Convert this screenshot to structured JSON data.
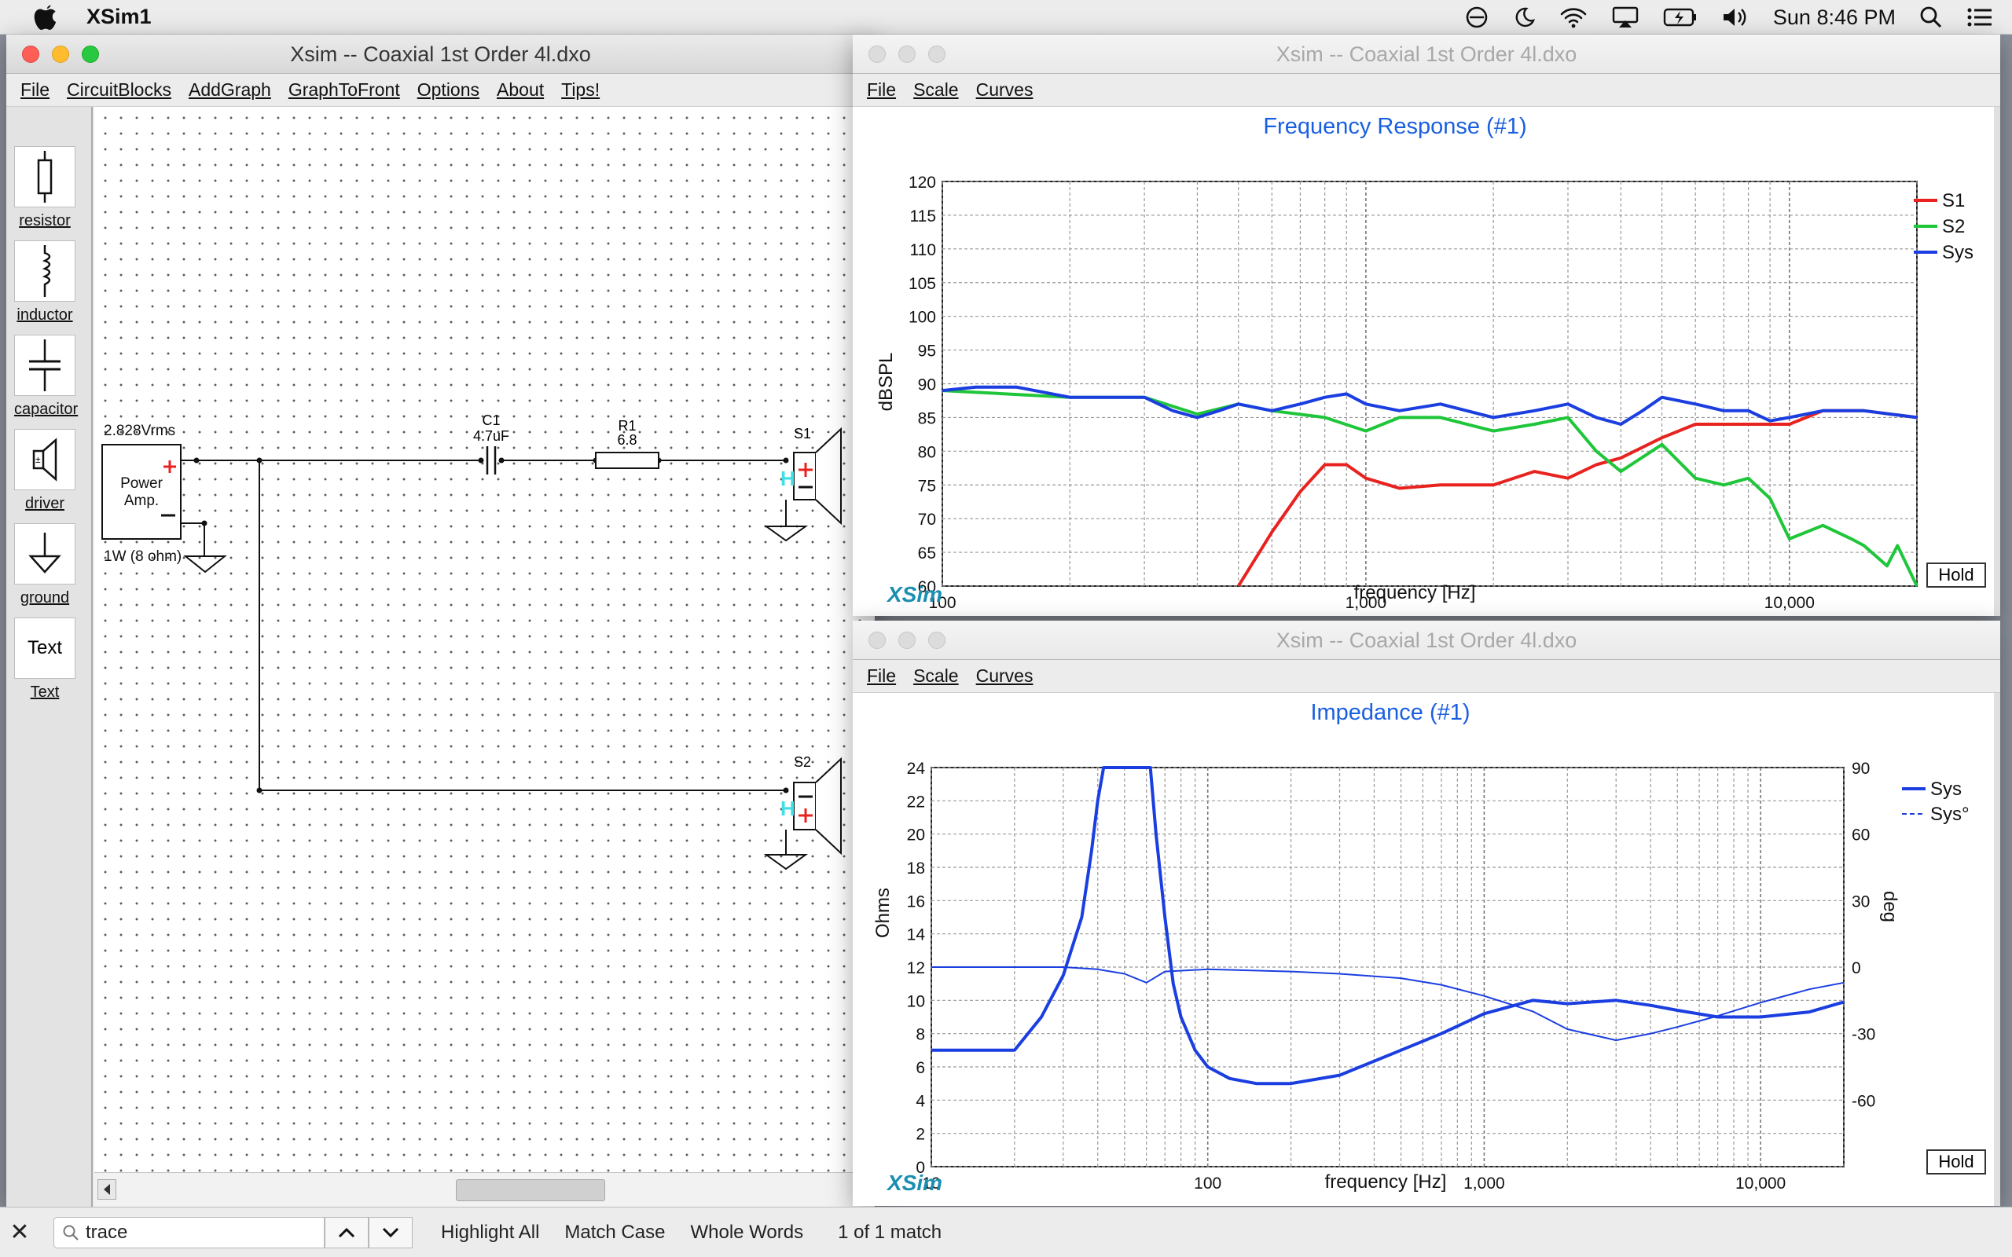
{
  "menubar": {
    "app_name": "XSim1",
    "clock": "Sun 8:46 PM"
  },
  "main_window": {
    "title": "Xsim -- Coaxial 1st Order 4l.dxo",
    "menu": [
      "File",
      "CircuitBlocks",
      "AddGraph",
      "GraphToFront",
      "Options",
      "About",
      "Tips!"
    ],
    "palette": [
      {
        "label": "resistor",
        "icon": "resistor-icon"
      },
      {
        "label": "inductor",
        "icon": "inductor-icon"
      },
      {
        "label": "capacitor",
        "icon": "capacitor-icon"
      },
      {
        "label": "driver",
        "icon": "driver-icon"
      },
      {
        "label": "ground",
        "icon": "ground-icon"
      },
      {
        "label": "Text",
        "icon": "text-icon"
      }
    ],
    "circuit": {
      "amp_voltage": "2.828Vrms",
      "amp_label_1": "Power",
      "amp_label_2": "Amp.",
      "amp_power": "1W (8 ohm)",
      "c1_name": "C1",
      "c1_value": "4.7uF",
      "r1_name": "R1",
      "r1_value": "6.8",
      "s1_name": "S1",
      "s2_name": "S2",
      "driver_tag": "H"
    }
  },
  "freq_window": {
    "title": "Xsim -- Coaxial 1st Order 4l.dxo",
    "menu": [
      "File",
      "Scale",
      "Curves"
    ],
    "hold_label": "Hold",
    "brand": "XSim",
    "chart_data": {
      "type": "line",
      "title": "Frequency Response (#1)",
      "xlabel": "frequency [Hz]",
      "ylabel": "dBSPL",
      "x_scale": "log",
      "xlim": [
        100,
        20000
      ],
      "ylim": [
        60,
        120
      ],
      "x_ticks": [
        "100",
        "1,000",
        "10,000"
      ],
      "y_ticks": [
        "60",
        "65",
        "70",
        "75",
        "80",
        "85",
        "90",
        "95",
        "100",
        "105",
        "110",
        "115",
        "120"
      ],
      "grid": true,
      "legend_position": "top-right",
      "series": [
        {
          "name": "S1",
          "color": "#e8231f",
          "x": [
            500,
            600,
            700,
            800,
            900,
            1000,
            1200,
            1500,
            2000,
            2500,
            3000,
            3500,
            4000,
            5000,
            6000,
            8000,
            10000,
            12000,
            15000,
            20000
          ],
          "y": [
            60,
            68,
            74,
            78,
            78,
            76,
            74.5,
            75,
            75,
            77,
            76,
            78,
            79,
            82,
            84,
            84,
            84,
            86,
            86,
            85
          ]
        },
        {
          "name": "S2",
          "color": "#1fc63a",
          "x": [
            100,
            200,
            300,
            400,
            500,
            600,
            800,
            1000,
            1200,
            1500,
            2000,
            2500,
            3000,
            3500,
            4000,
            5000,
            6000,
            7000,
            8000,
            9000,
            10000,
            12000,
            14000,
            15000,
            17000,
            18000,
            20000
          ],
          "y": [
            89,
            88,
            88,
            85.5,
            87,
            86,
            85,
            83,
            85,
            85,
            83,
            84,
            85,
            80,
            77,
            81,
            76,
            75,
            76,
            73,
            67,
            69,
            67,
            66,
            63,
            66,
            60
          ]
        },
        {
          "name": "Sys",
          "color": "#1a3ee0",
          "x": [
            100,
            120,
            150,
            200,
            300,
            350,
            400,
            450,
            500,
            600,
            700,
            800,
            900,
            1000,
            1200,
            1500,
            2000,
            2500,
            3000,
            3500,
            4000,
            4500,
            5000,
            6000,
            7000,
            8000,
            9000,
            10000,
            12000,
            15000,
            20000
          ],
          "y": [
            89,
            89.5,
            89.5,
            88,
            88,
            86,
            85,
            86,
            87,
            86,
            87,
            88,
            88.5,
            87,
            86,
            87,
            85,
            86,
            87,
            85,
            84,
            86,
            88,
            87,
            86,
            86,
            84.5,
            85,
            86,
            86,
            85
          ]
        }
      ]
    }
  },
  "imp_window": {
    "title": "Xsim -- Coaxial 1st Order 4l.dxo",
    "menu": [
      "File",
      "Scale",
      "Curves"
    ],
    "hold_label": "Hold",
    "brand": "XSim",
    "chart_data": {
      "type": "line",
      "title": "Impedance (#1)",
      "xlabel": "frequency [Hz]",
      "ylabel": "Ohms",
      "y2label": "deg",
      "x_scale": "log",
      "xlim": [
        10,
        20000
      ],
      "ylim": [
        0,
        24
      ],
      "y2lim": [
        -90,
        90
      ],
      "x_ticks": [
        "10",
        "100",
        "1,000",
        "10,000"
      ],
      "y_ticks": [
        "0",
        "2",
        "4",
        "6",
        "8",
        "10",
        "12",
        "14",
        "16",
        "18",
        "20",
        "22",
        "24"
      ],
      "y2_ticks": [
        "90",
        "60",
        "30",
        "0",
        "-30",
        "-60"
      ],
      "grid": true,
      "legend_position": "top-right",
      "series": [
        {
          "name": "Sys",
          "axis": "left",
          "color": "#1a3ee0",
          "style": "solid",
          "x": [
            10,
            15,
            20,
            25,
            30,
            35,
            38,
            40,
            42,
            43,
            62,
            65,
            70,
            75,
            80,
            90,
            100,
            120,
            150,
            200,
            300,
            500,
            700,
            1000,
            1500,
            2000,
            3000,
            4000,
            5000,
            7000,
            10000,
            15000,
            20000
          ],
          "y": [
            7,
            7,
            7,
            9,
            11.5,
            15,
            19,
            22,
            24,
            24,
            24,
            20,
            15,
            11,
            9,
            7,
            6,
            5.3,
            5,
            5,
            5.5,
            7,
            8,
            9.2,
            10,
            9.8,
            10,
            9.7,
            9.4,
            9,
            9,
            9.3,
            9.9
          ]
        },
        {
          "name": "Sys°",
          "axis": "right",
          "color": "#1a3ee0",
          "style": "dashed",
          "x": [
            10,
            20,
            30,
            40,
            50,
            60,
            70,
            100,
            200,
            300,
            500,
            700,
            1000,
            1500,
            2000,
            3000,
            4000,
            5000,
            7000,
            10000,
            15000,
            20000
          ],
          "y": [
            0,
            0,
            0,
            -1,
            -3,
            -7,
            -2,
            -1,
            -2,
            -3,
            -5,
            -8,
            -13,
            -20,
            -28,
            -33,
            -30,
            -27,
            -22,
            -16,
            -10,
            -7
          ]
        }
      ]
    }
  },
  "findbar": {
    "query": "trace",
    "highlight_all": "Highlight All",
    "match_case": "Match Case",
    "whole_words": "Whole Words",
    "result": "1 of 1 match"
  }
}
